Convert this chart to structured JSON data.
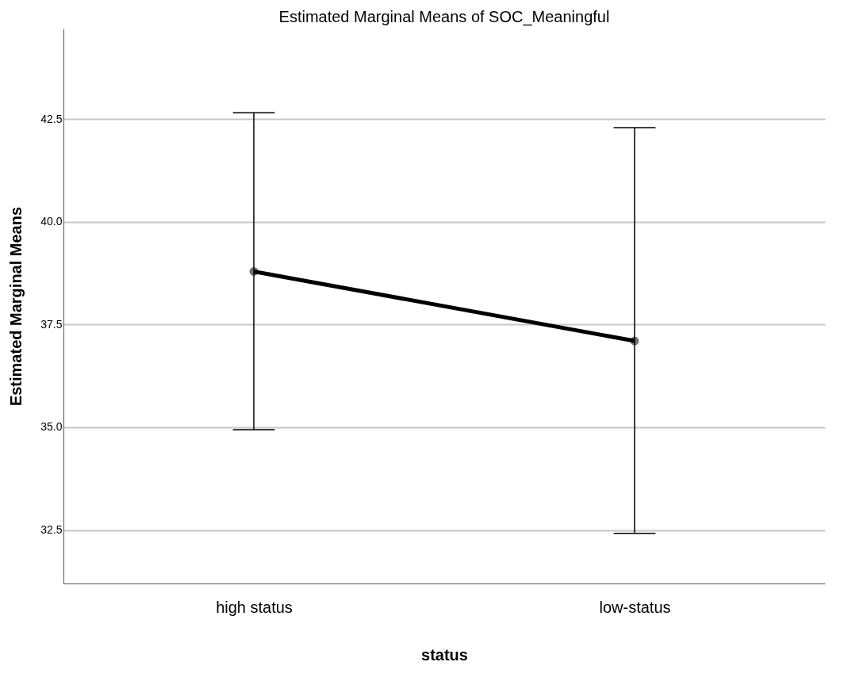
{
  "chart_data": {
    "type": "line",
    "title": "Estimated Marginal Means of SOC_Meaningful",
    "xlabel": "status",
    "ylabel": "Estimated Marginal Means",
    "categories": [
      "high status",
      "low-status"
    ],
    "series": [
      {
        "color": "#000000",
        "values": [
          38.79,
          37.1
        ],
        "errors": [
          [
            34.94,
            42.65
          ],
          [
            32.42,
            42.29
          ]
        ]
      }
    ],
    "ylim": [
      31.2,
      44.7
    ],
    "yticks": [
      {
        "value": 32.5,
        "label": "32.5"
      },
      {
        "value": 35,
        "label": "35.0"
      },
      {
        "value": 37.5,
        "label": "37.5"
      },
      {
        "value": 40,
        "label": "40.0"
      },
      {
        "value": 42.5,
        "label": "42.5"
      }
    ],
    "grid": "y",
    "marker": "circle",
    "line_style": "solid"
  }
}
